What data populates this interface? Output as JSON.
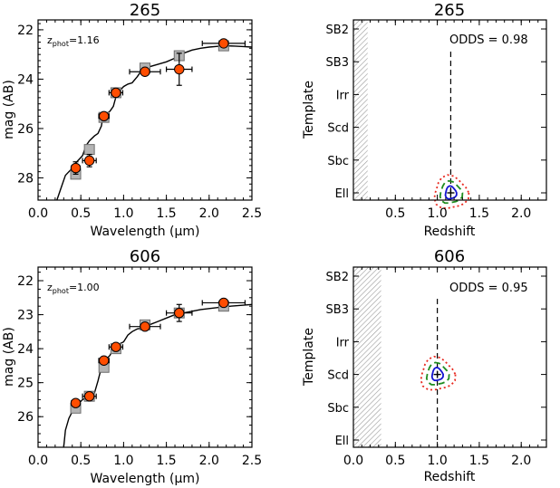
{
  "chart_data": [
    {
      "type": "scatter",
      "panel": "sed",
      "title": "265",
      "annotation": {
        "prefix": "z",
        "sub": "phot",
        "value": "=1.16"
      },
      "xlabel": "Wavelength (μm)",
      "ylabel": "mag (AB)",
      "xlim": [
        0.0,
        2.5
      ],
      "ylim": [
        28.9,
        21.6
      ],
      "xticks": [
        "0.0",
        "0.5",
        "1.0",
        "1.5",
        "2.0",
        "2.5"
      ],
      "yticks": [
        "22",
        "24",
        "26",
        "28"
      ],
      "series": [
        {
          "role": "template-curve",
          "x": [
            0.22,
            0.28,
            0.32,
            0.36,
            0.4,
            0.44,
            0.48,
            0.52,
            0.56,
            0.6,
            0.66,
            0.7,
            0.74,
            0.76,
            0.8,
            0.84,
            0.88,
            0.92,
            0.96,
            1.0,
            1.05,
            1.1,
            1.16,
            1.2,
            1.25,
            1.3,
            1.4,
            1.5,
            1.6,
            1.7,
            1.8,
            1.9,
            2.0,
            2.1,
            2.2,
            2.3,
            2.4,
            2.5
          ],
          "y": [
            28.9,
            28.3,
            27.9,
            27.75,
            27.6,
            27.4,
            27.25,
            27.1,
            26.7,
            26.5,
            26.3,
            26.2,
            25.9,
            25.5,
            25.4,
            25.3,
            25.1,
            24.6,
            24.45,
            24.3,
            24.2,
            24.15,
            23.9,
            23.7,
            23.6,
            23.5,
            23.4,
            23.3,
            23.15,
            22.95,
            22.82,
            22.75,
            22.7,
            22.67,
            22.65,
            22.66,
            22.68,
            22.7
          ]
        },
        {
          "role": "template-magnitudes",
          "x": [
            0.44,
            0.6,
            0.77,
            0.91,
            1.25,
            1.65,
            2.17
          ],
          "y": [
            27.85,
            26.85,
            25.55,
            24.55,
            23.55,
            23.05,
            22.65
          ]
        },
        {
          "role": "observed",
          "x": [
            0.44,
            0.6,
            0.77,
            0.91,
            1.25,
            1.65,
            2.17
          ],
          "y": [
            27.6,
            27.3,
            25.5,
            24.55,
            23.7,
            23.6,
            22.55
          ],
          "xerr": [
            0.05,
            0.08,
            0.06,
            0.08,
            0.18,
            0.15,
            0.25
          ],
          "yerr": [
            0.25,
            0.25,
            0.12,
            0.1,
            0.08,
            0.65,
            0.1
          ]
        }
      ]
    },
    {
      "type": "contour",
      "panel": "odds",
      "title": "265",
      "annotation": "ODDS = 0.98",
      "xlabel": "Redshift",
      "ylabel": "Template",
      "xlim": [
        0.0,
        2.3
      ],
      "xticks": [
        "0.5",
        "1.0",
        "1.5",
        "2.0"
      ],
      "yticks": [
        "SB2",
        "SB3",
        "Irr",
        "Scd",
        "Sbc",
        "Ell"
      ],
      "z_phot": 1.16,
      "excluded_region": [
        0.0,
        0.17
      ],
      "best_fit": {
        "z": 1.16,
        "template": "Ell"
      }
    },
    {
      "type": "scatter",
      "panel": "sed",
      "title": "606",
      "annotation": {
        "prefix": "z",
        "sub": "phot",
        "value": "=1.00"
      },
      "xlabel": "Wavelength (μm)",
      "ylabel": "mag (AB)",
      "xlim": [
        0.0,
        2.5
      ],
      "ylim": [
        26.9,
        21.6
      ],
      "xticks": [
        "0.0",
        "0.5",
        "1.0",
        "1.5",
        "2.0",
        "2.5"
      ],
      "yticks": [
        "22",
        "23",
        "24",
        "25",
        "26"
      ],
      "series": [
        {
          "role": "template-curve",
          "x": [
            0.3,
            0.32,
            0.36,
            0.4,
            0.44,
            0.48,
            0.52,
            0.56,
            0.6,
            0.66,
            0.7,
            0.72,
            0.76,
            0.8,
            0.84,
            0.88,
            0.92,
            0.96,
            1.0,
            1.05,
            1.1,
            1.16,
            1.2,
            1.3,
            1.4,
            1.5,
            1.6,
            1.7,
            1.8,
            1.9,
            2.0,
            2.1,
            2.2,
            2.3,
            2.4,
            2.5
          ],
          "y": [
            26.9,
            26.4,
            26.05,
            25.85,
            25.7,
            25.6,
            25.5,
            25.45,
            25.42,
            25.3,
            24.95,
            24.75,
            24.4,
            24.3,
            24.2,
            24.0,
            23.9,
            23.85,
            23.8,
            23.6,
            23.5,
            23.42,
            23.4,
            23.3,
            23.2,
            23.1,
            23.0,
            22.95,
            22.9,
            22.85,
            22.82,
            22.79,
            22.76,
            22.74,
            22.72,
            22.7
          ]
        },
        {
          "role": "template-magnitudes",
          "x": [
            0.44,
            0.6,
            0.77,
            0.91,
            1.25,
            1.65,
            2.17
          ],
          "y": [
            25.75,
            25.4,
            24.55,
            24.0,
            23.3,
            22.95,
            22.75
          ]
        },
        {
          "role": "observed",
          "x": [
            0.44,
            0.6,
            0.77,
            0.91,
            1.25,
            1.65,
            2.17
          ],
          "y": [
            25.6,
            25.4,
            24.35,
            23.95,
            23.35,
            22.95,
            22.65
          ],
          "xerr": [
            0.05,
            0.08,
            0.06,
            0.08,
            0.18,
            0.15,
            0.25
          ],
          "yerr": [
            0.1,
            0.1,
            0.08,
            0.05,
            0.05,
            0.25,
            0.1
          ]
        }
      ]
    },
    {
      "type": "contour",
      "panel": "odds",
      "title": "606",
      "annotation": "ODDS = 0.95",
      "xlabel": "Redshift",
      "ylabel": "Template",
      "xlim": [
        0.0,
        2.3
      ],
      "xticks": [
        "0.0",
        "0.5",
        "1.0",
        "1.5",
        "2.0"
      ],
      "yticks": [
        "SB2",
        "SB3",
        "Irr",
        "Scd",
        "Sbc",
        "Ell"
      ],
      "z_phot": 1.0,
      "excluded_region": [
        0.0,
        0.33
      ],
      "best_fit": {
        "z": 1.0,
        "template": "Scd"
      }
    }
  ]
}
